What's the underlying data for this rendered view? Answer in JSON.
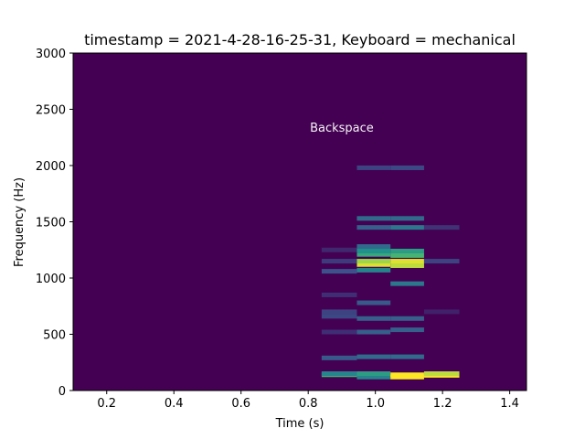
{
  "chart_data": {
    "type": "heatmap",
    "title": "timestamp = 2021-4-28-16-25-31, Keyboard = mechanical",
    "xlabel": "Time (s)",
    "ylabel": "Frequency (Hz)",
    "xlim": [
      0.1,
      1.45
    ],
    "ylim": [
      0,
      3000
    ],
    "x_ticks": [
      "0.2",
      "0.4",
      "0.6",
      "0.8",
      "1.0",
      "1.2",
      "1.4"
    ],
    "x_tick_values": [
      0.2,
      0.4,
      0.6,
      0.8,
      1.0,
      1.2,
      1.4
    ],
    "y_ticks": [
      "0",
      "500",
      "1000",
      "1500",
      "2000",
      "2500",
      "3000"
    ],
    "y_tick_values": [
      0,
      500,
      1000,
      1500,
      2000,
      2500,
      3000
    ],
    "annotations": [
      {
        "text": "Backspace",
        "x": 0.9,
        "y": 2300
      }
    ],
    "colormap": "viridis",
    "background_color": "#440154",
    "time_frames": [
      {
        "t0": 0.84,
        "t1": 0.945,
        "bands": [
          {
            "f": 140,
            "level": 0.65
          },
          {
            "f": 150,
            "level": 0.45
          },
          {
            "f": 290,
            "level": 0.28
          },
          {
            "f": 660,
            "level": 0.22
          },
          {
            "f": 700,
            "level": 0.2
          },
          {
            "f": 1060,
            "level": 0.25
          },
          {
            "f": 1150,
            "level": 0.18
          },
          {
            "f": 520,
            "level": 0.14
          },
          {
            "f": 850,
            "level": 0.14
          },
          {
            "f": 1250,
            "level": 0.12
          }
        ]
      },
      {
        "t0": 0.945,
        "t1": 1.045,
        "bands": [
          {
            "f": 120,
            "level": 0.45
          },
          {
            "f": 150,
            "level": 0.55
          },
          {
            "f": 300,
            "level": 0.35
          },
          {
            "f": 520,
            "level": 0.3
          },
          {
            "f": 640,
            "level": 0.3
          },
          {
            "f": 780,
            "level": 0.28
          },
          {
            "f": 1070,
            "level": 0.45
          },
          {
            "f": 1120,
            "level": 0.95
          },
          {
            "f": 1150,
            "level": 0.85
          },
          {
            "f": 1210,
            "level": 0.6
          },
          {
            "f": 1240,
            "level": 0.5
          },
          {
            "f": 1280,
            "level": 0.35
          },
          {
            "f": 1450,
            "level": 0.3
          },
          {
            "f": 1530,
            "level": 0.35
          },
          {
            "f": 1980,
            "level": 0.2
          }
        ]
      },
      {
        "t0": 1.045,
        "t1": 1.145,
        "bands": [
          {
            "f": 120,
            "level": 1.0
          },
          {
            "f": 140,
            "level": 1.0
          },
          {
            "f": 300,
            "level": 0.35
          },
          {
            "f": 540,
            "level": 0.3
          },
          {
            "f": 640,
            "level": 0.3
          },
          {
            "f": 950,
            "level": 0.4
          },
          {
            "f": 1110,
            "level": 0.9
          },
          {
            "f": 1150,
            "level": 0.95
          },
          {
            "f": 1200,
            "level": 0.65
          },
          {
            "f": 1240,
            "level": 0.55
          },
          {
            "f": 1450,
            "level": 0.4
          },
          {
            "f": 1530,
            "level": 0.35
          },
          {
            "f": 1980,
            "level": 0.22
          }
        ]
      },
      {
        "t0": 1.145,
        "t1": 1.25,
        "bands": [
          {
            "f": 135,
            "level": 1.0
          },
          {
            "f": 150,
            "level": 0.9
          },
          {
            "f": 1150,
            "level": 0.2
          },
          {
            "f": 1450,
            "level": 0.15
          },
          {
            "f": 700,
            "level": 0.1
          }
        ]
      }
    ]
  }
}
